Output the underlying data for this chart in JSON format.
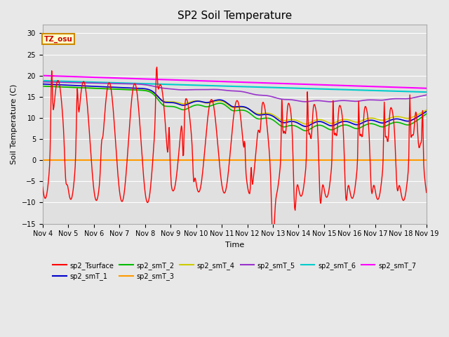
{
  "title": "SP2 Soil Temperature",
  "xlabel": "Time",
  "ylabel": "Soil Temperature (C)",
  "ylim": [
    -15,
    32
  ],
  "yticks": [
    -15,
    -10,
    -5,
    0,
    5,
    10,
    15,
    20,
    25,
    30
  ],
  "tz_label": "TZ_osu",
  "fig_bg": "#e8e8e8",
  "ax_bg": "#e0e0e0",
  "series_colors": {
    "sp2_Tsurface": "#ff0000",
    "sp2_smT_1": "#0000cc",
    "sp2_smT_2": "#00bb00",
    "sp2_smT_3": "#ff9900",
    "sp2_smT_4": "#cccc00",
    "sp2_smT_5": "#9933cc",
    "sp2_smT_6": "#00cccc",
    "sp2_smT_7": "#ff00ff"
  }
}
